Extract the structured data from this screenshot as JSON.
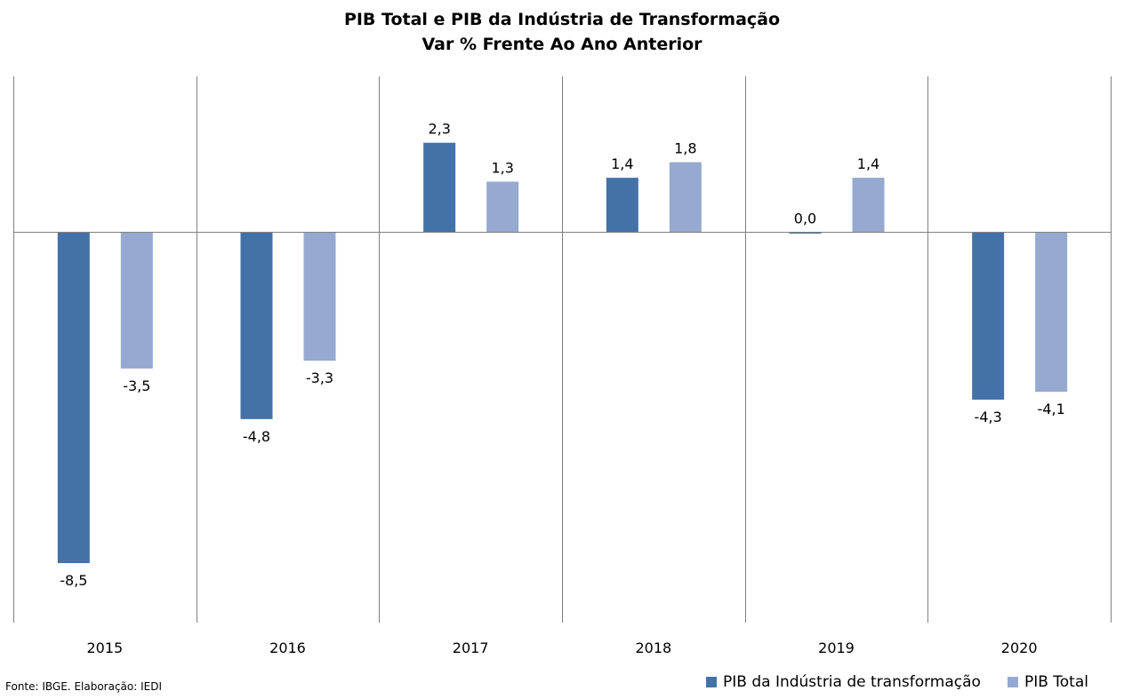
{
  "chart_data": {
    "type": "bar",
    "title": "PIB Total e PIB da Indústria de Transformação",
    "subtitle": "Var % Frente Ao Ano Anterior",
    "categories": [
      "2015",
      "2016",
      "2017",
      "2018",
      "2019",
      "2020"
    ],
    "series": [
      {
        "name": "PIB da Indústria de transformação",
        "color": "#4472A8",
        "values": [
          -8.5,
          -4.8,
          2.3,
          1.4,
          0.0,
          -4.3
        ],
        "labels": [
          "-8,5",
          "-4,8",
          "2,3",
          "1,4",
          "0,0",
          "-4,3"
        ]
      },
      {
        "name": "PIB Total",
        "color": "#95A9D1",
        "values": [
          -3.5,
          -3.3,
          1.3,
          1.8,
          1.4,
          -4.1
        ],
        "labels": [
          "-3,5",
          "-3,3",
          "1,3",
          "1,8",
          "1,4",
          "-4,1"
        ]
      }
    ],
    "ylim": [
      -10,
      4
    ],
    "grid": false,
    "legend_position": "bottom-right",
    "source": "Fonte: IBGE. Elaboração: IEDI"
  }
}
